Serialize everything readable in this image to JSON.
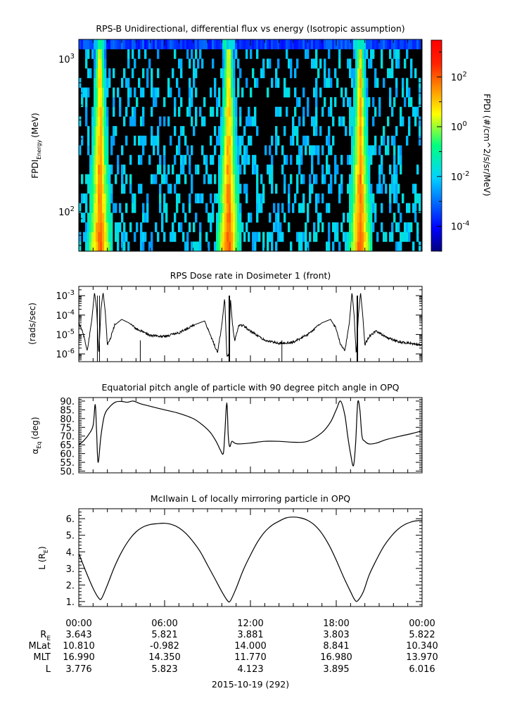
{
  "chart_data": [
    {
      "type": "heatmap",
      "title": "RPS-B  Unidirectional, differential flux vs energy (Isotropic assumption)",
      "ylabel_main": "FPDI",
      "ylabel_sub": "Energy",
      "ylabel_unit": "(MeV)",
      "yscale": "log",
      "ylim": [
        55,
        1350
      ],
      "yticks": [
        {
          "value": 100,
          "base": "10",
          "exp": "2"
        },
        {
          "value": 1000,
          "base": "10",
          "exp": "3"
        }
      ],
      "colorbar": {
        "label": "FPDI (#/cm^2/s/sr/MeV)",
        "scale": "log",
        "range": [
          1e-05,
          3000
        ],
        "ticks": [
          {
            "value": 0.0001,
            "base": "10",
            "exp": "-4"
          },
          {
            "value": 0.01,
            "base": "10",
            "exp": "-2"
          },
          {
            "value": 1,
            "base": "10",
            "exp": "0"
          },
          {
            "value": 100,
            "base": "10",
            "exp": "2"
          }
        ]
      },
      "bright_bands_hours": [
        1.4,
        10.4,
        19.6
      ]
    },
    {
      "type": "line",
      "title": "RPS  Dose rate in Dosimeter 1 (front)",
      "ylabel": "(rads/sec)",
      "yscale": "log",
      "ylim": [
        4e-07,
        0.003
      ],
      "yticks": [
        {
          "value": 0.001,
          "base": "10",
          "exp": "-3"
        },
        {
          "value": 0.0001,
          "base": "10",
          "exp": "-4"
        },
        {
          "value": 1e-05,
          "base": "10",
          "exp": "-5"
        },
        {
          "value": 1e-06,
          "base": "10",
          "exp": "-6"
        }
      ],
      "x_hours": [
        0,
        0.3,
        0.6,
        0.9,
        1.1,
        1.25,
        1.4,
        1.55,
        1.7,
        1.85,
        2.0,
        2.2,
        2.5,
        3.0,
        3.5,
        4.0,
        5.0,
        6.0,
        7.0,
        8.0,
        8.8,
        9.3,
        9.7,
        10.0,
        10.2,
        10.35,
        10.5,
        10.6,
        10.75,
        10.9,
        11.2,
        11.5,
        12.0,
        13.0,
        14.0,
        15.0,
        16.0,
        17.0,
        17.6,
        18.0,
        18.3,
        18.6,
        18.9,
        19.1,
        19.25,
        19.4,
        19.55,
        19.7,
        19.85,
        20.0,
        20.3,
        20.8,
        21.5,
        22.5,
        23.2,
        24.0
      ],
      "y": [
        4e-05,
        1.2e-05,
        1.5e-06,
        5e-05,
        0.0015,
        0.0002,
        8e-07,
        0.0002,
        0.0015,
        0.00015,
        3e-06,
        6e-06,
        3e-05,
        6e-05,
        4e-05,
        2e-05,
        9e-06,
        8e-06,
        1.2e-05,
        3e-05,
        5e-05,
        6e-06,
        1.2e-06,
        3e-05,
        0.0008,
        8e-07,
        8e-07,
        0.0008,
        3e-05,
        5e-06,
        3e-05,
        3e-05,
        1.5e-05,
        5e-06,
        3.5e-06,
        4e-06,
        1e-05,
        4e-05,
        6e-05,
        2e-05,
        3e-06,
        1.5e-06,
        3e-05,
        0.0015,
        0.0001,
        8e-07,
        0.0001,
        0.0015,
        0.0001,
        3e-06,
        8e-06,
        1.5e-05,
        7e-06,
        4e-06,
        3.5e-06,
        3e-06
      ]
    },
    {
      "type": "line",
      "title": "Equatorial pitch angle of particle with 90 degree pitch angle in OPQ",
      "ylabel_main": "α",
      "ylabel_sub": "Eq",
      "ylabel_unit": "(deg)",
      "ylim": [
        49,
        92
      ],
      "yticks": [
        "90.",
        "85.",
        "80.",
        "75.",
        "70.",
        "65.",
        "60.",
        "55.",
        "50."
      ],
      "ytick_values": [
        90,
        85,
        80,
        75,
        70,
        65,
        60,
        55,
        50
      ],
      "x_hours": [
        0,
        0.3,
        0.7,
        1.0,
        1.15,
        1.25,
        1.35,
        1.55,
        1.8,
        2.2,
        2.6,
        3.0,
        3.4,
        3.8,
        4.3,
        5.0,
        6.0,
        7.0,
        8.0,
        8.7,
        9.2,
        9.6,
        9.9,
        10.1,
        10.2,
        10.35,
        10.45,
        10.55,
        10.7,
        10.9,
        11.2,
        12.0,
        13.0,
        14.0,
        15.0,
        16.0,
        17.0,
        17.6,
        18.0,
        18.3,
        18.6,
        18.8,
        19.0,
        19.2,
        19.35,
        19.5,
        19.65,
        19.8,
        20.0,
        20.3,
        20.8,
        21.5,
        22.5,
        23.3,
        24.0
      ],
      "y": [
        65,
        67,
        71,
        76,
        88,
        72,
        55,
        70,
        82,
        87,
        89.5,
        89.8,
        89.3,
        90,
        88.5,
        87,
        85,
        83,
        80,
        76,
        72,
        67,
        62,
        60,
        70,
        89,
        70,
        64,
        67,
        66,
        65.5,
        66,
        67,
        67,
        66.5,
        67,
        72,
        78,
        85,
        90,
        82,
        70,
        60,
        53,
        65,
        89,
        85,
        70,
        67,
        65.5,
        66,
        68,
        70,
        71.5,
        73
      ]
    },
    {
      "type": "line",
      "title": "McIlwain L of locally mirroring particle in OPQ",
      "ylabel_main": "L (R",
      "ylabel_sub": "E",
      "ylabel_close": ")",
      "ylim": [
        0.7,
        6.6
      ],
      "yticks": [
        "6.",
        "5.",
        "4.",
        "3.",
        "2.",
        "1."
      ],
      "ytick_values": [
        6,
        5,
        4,
        3,
        2,
        1
      ],
      "x_hours": [
        0,
        0.5,
        1.0,
        1.4,
        1.6,
        2.0,
        2.5,
        3.0,
        3.5,
        4.0,
        4.5,
        5.0,
        5.5,
        6.0,
        6.5,
        7.0,
        7.5,
        8.0,
        8.5,
        9.0,
        9.5,
        10.0,
        10.4,
        10.6,
        11.0,
        11.5,
        12.0,
        12.5,
        13.0,
        13.5,
        14.0,
        14.5,
        15.0,
        15.5,
        16.0,
        16.5,
        17.0,
        17.5,
        18.0,
        18.5,
        19.0,
        19.3,
        19.5,
        19.9,
        20.3,
        20.8,
        21.3,
        21.8,
        22.3,
        22.8,
        23.3,
        23.7,
        24.0
      ],
      "y": [
        3.9,
        2.8,
        1.8,
        1.2,
        1.2,
        2.0,
        3.1,
        4.0,
        4.7,
        5.2,
        5.5,
        5.65,
        5.7,
        5.72,
        5.65,
        5.45,
        5.1,
        4.6,
        4.0,
        3.2,
        2.4,
        1.6,
        1.05,
        1.05,
        1.8,
        2.9,
        3.8,
        4.6,
        5.2,
        5.6,
        5.85,
        6.05,
        6.1,
        6.05,
        5.9,
        5.6,
        5.1,
        4.4,
        3.5,
        2.5,
        1.6,
        1.1,
        1.05,
        1.6,
        2.6,
        3.5,
        4.3,
        4.9,
        5.35,
        5.65,
        5.82,
        5.88,
        5.9
      ]
    }
  ],
  "time_axis": {
    "xlim_hours": [
      0,
      24
    ],
    "major_hours": [
      0,
      6,
      12,
      18,
      24
    ],
    "minor_step_hours": 1,
    "time_labels": [
      "00:00",
      "06:00",
      "12:00",
      "18:00",
      "00:00"
    ]
  },
  "ephemeris": {
    "rows": [
      {
        "label_main": "R",
        "label_sub": "E",
        "values": [
          "3.643",
          "5.821",
          "3.881",
          "3.803",
          "5.822"
        ]
      },
      {
        "label_main": "MLat",
        "label_sub": "",
        "values": [
          "10.810",
          "-0.982",
          "14.000",
          "8.841",
          "10.340"
        ]
      },
      {
        "label_main": "MLT",
        "label_sub": "",
        "values": [
          "16.990",
          "14.350",
          "11.770",
          "16.980",
          "13.970"
        ]
      },
      {
        "label_main": "L",
        "label_sub": "",
        "values": [
          "3.776",
          "5.823",
          "4.123",
          "3.895",
          "6.016"
        ]
      }
    ],
    "date_label": "2015-10-19 (292)"
  },
  "colors": {
    "line": "#000000",
    "background": "#ffffff",
    "spectrogram_bg": "#000000"
  }
}
